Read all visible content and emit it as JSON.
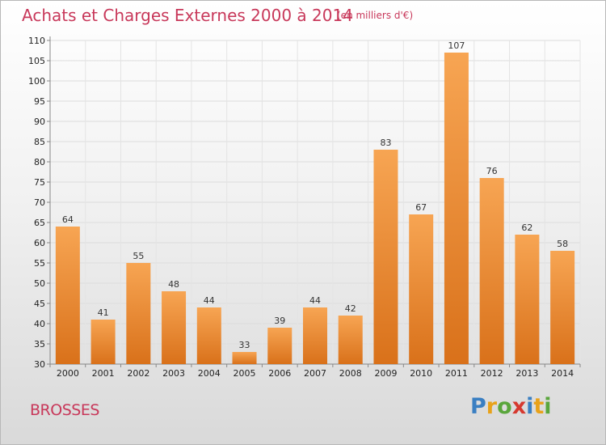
{
  "page": {
    "title": "Achats et Charges Externes 2000 à 2014",
    "subtitle": "(en milliers d'€)",
    "commune": "BROSSES",
    "logo": {
      "text": "Proxiti",
      "letters": [
        {
          "ch": "P",
          "color": "#3a7fc2"
        },
        {
          "ch": "r",
          "color": "#e8a21a"
        },
        {
          "ch": "o",
          "color": "#5aa63c"
        },
        {
          "ch": "x",
          "color": "#d6392f"
        },
        {
          "ch": "i",
          "color": "#3a7fc2"
        },
        {
          "ch": "t",
          "color": "#e8a21a"
        },
        {
          "ch": "i",
          "color": "#5aa63c"
        }
      ]
    }
  },
  "chart_data": {
    "type": "bar",
    "title": "Achats et Charges Externes 2000 à 2014",
    "subtitle": "(en milliers d'€)",
    "xlabel": "",
    "ylabel": "",
    "categories": [
      "2000",
      "2001",
      "2002",
      "2003",
      "2004",
      "2005",
      "2006",
      "2007",
      "2008",
      "2009",
      "2010",
      "2011",
      "2012",
      "2013",
      "2014"
    ],
    "values": [
      64,
      41,
      55,
      48,
      44,
      33,
      39,
      44,
      42,
      83,
      67,
      107,
      76,
      62,
      58
    ],
    "ylim": [
      30,
      110
    ],
    "yticks": [
      30,
      35,
      40,
      45,
      50,
      55,
      60,
      65,
      70,
      75,
      80,
      85,
      90,
      95,
      100,
      105,
      110
    ],
    "grid": true,
    "legend": "none",
    "bar_color": "#f0913a"
  }
}
